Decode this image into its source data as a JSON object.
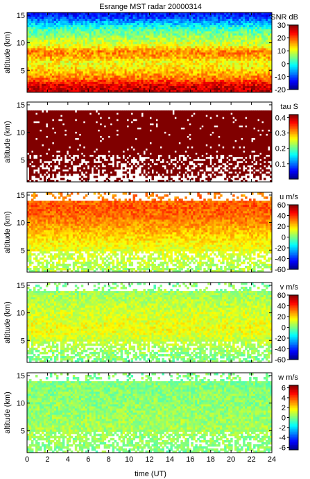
{
  "title": "Esrange MST radar 20000314",
  "chart_data": {
    "type": "heatmap",
    "title": "Esrange MST radar 20000314",
    "xlabel": "time (UT)",
    "xlim": [
      0,
      24
    ],
    "x_ticks": [
      "0",
      "2",
      "4",
      "6",
      "8",
      "10",
      "12",
      "14",
      "16",
      "18",
      "20",
      "22",
      "24"
    ],
    "panels": [
      {
        "id": "snr",
        "ylabel": "altitude (km)",
        "ylim": [
          1,
          15.5
        ],
        "y_ticks": [
          "5",
          "10",
          "15"
        ],
        "colorbar_label": "SNR dB",
        "clim": [
          -20,
          30
        ],
        "colorbar_ticks": [
          "30",
          "20",
          "10",
          "0",
          "-10",
          "-20"
        ],
        "profile": [
          {
            "alt": 1.5,
            "value": 27
          },
          {
            "alt": 2.5,
            "value": 24
          },
          {
            "alt": 3.5,
            "value": 18
          },
          {
            "alt": 4.5,
            "value": 15
          },
          {
            "alt": 5.5,
            "value": 12
          },
          {
            "alt": 6.5,
            "value": 11
          },
          {
            "alt": 7.5,
            "value": 16
          },
          {
            "alt": 8.5,
            "value": 17
          },
          {
            "alt": 9.5,
            "value": 10
          },
          {
            "alt": 10.5,
            "value": 8
          },
          {
            "alt": 11.5,
            "value": 5
          },
          {
            "alt": 12.5,
            "value": 2
          },
          {
            "alt": 13.5,
            "value": -4
          },
          {
            "alt": 14.5,
            "value": -10
          },
          {
            "alt": 15.5,
            "value": -14
          }
        ]
      },
      {
        "id": "tau",
        "ylabel": "altitude (km)",
        "ylim": [
          1,
          15.5
        ],
        "y_ticks": [
          "5",
          "10",
          "15"
        ],
        "colorbar_label": "tau S",
        "clim": [
          0,
          0.42
        ],
        "colorbar_ticks": [
          "0.4",
          "0.3",
          "0.2",
          "0.1"
        ],
        "profile": [
          {
            "alt": 2,
            "value": 0.42
          },
          {
            "alt": 5,
            "value": 0.42
          },
          {
            "alt": 8,
            "value": 0.42
          },
          {
            "alt": 11,
            "value": 0.42
          },
          {
            "alt": 14,
            "value": 0.42
          }
        ]
      },
      {
        "id": "u",
        "ylabel": "altitude (km)",
        "ylim": [
          1,
          15.5
        ],
        "y_ticks": [
          "5",
          "10",
          "15"
        ],
        "colorbar_label": "u m/s",
        "clim": [
          -60,
          60
        ],
        "colorbar_ticks": [
          "60",
          "40",
          "20",
          "0",
          "-20",
          "-40",
          "-60"
        ],
        "profile": [
          {
            "alt": 1.5,
            "value": 5
          },
          {
            "alt": 3,
            "value": 8
          },
          {
            "alt": 5,
            "value": 12
          },
          {
            "alt": 7,
            "value": 18
          },
          {
            "alt": 9,
            "value": 25
          },
          {
            "alt": 11,
            "value": 32
          },
          {
            "alt": 13,
            "value": 35
          },
          {
            "alt": 15,
            "value": 30
          }
        ]
      },
      {
        "id": "v",
        "ylabel": "altitude (km)",
        "ylim": [
          1,
          15.5
        ],
        "y_ticks": [
          "5",
          "10",
          "15"
        ],
        "colorbar_label": "v m/s",
        "clim": [
          -60,
          60
        ],
        "colorbar_ticks": [
          "60",
          "40",
          "20",
          "0",
          "-20",
          "-40",
          "-60"
        ],
        "profile": [
          {
            "alt": 1.5,
            "value": 0
          },
          {
            "alt": 4,
            "value": 6
          },
          {
            "alt": 7,
            "value": 14
          },
          {
            "alt": 10,
            "value": 10
          },
          {
            "alt": 13,
            "value": 5
          },
          {
            "alt": 15,
            "value": 0
          }
        ]
      },
      {
        "id": "w",
        "ylabel": "altitude (km)",
        "ylim": [
          1,
          15.5
        ],
        "y_ticks": [
          "5",
          "10",
          "15"
        ],
        "colorbar_label": "w m/s",
        "clim": [
          -6.5,
          6.5
        ],
        "colorbar_ticks": [
          "6",
          "4",
          "2",
          "0",
          "-2",
          "-4",
          "-6"
        ],
        "profile": [
          {
            "alt": 1.5,
            "value": 0
          },
          {
            "alt": 5,
            "value": 0.5
          },
          {
            "alt": 10,
            "value": 0.2
          },
          {
            "alt": 15,
            "value": 0
          }
        ]
      }
    ]
  }
}
